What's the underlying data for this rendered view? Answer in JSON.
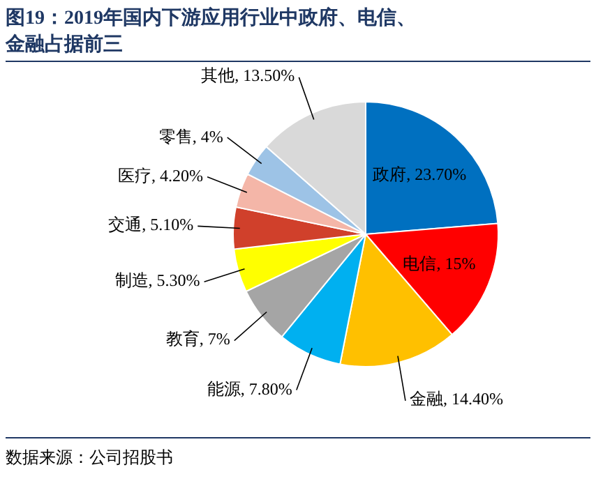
{
  "chart_data": {
    "type": "pie",
    "title": "图19：2019年国内下游应用行业中政府、电信、金融占据前三",
    "categories": [
      "政府",
      "电信",
      "金融",
      "能源",
      "教育",
      "制造",
      "交通",
      "医疗",
      "零售",
      "其他"
    ],
    "values": [
      23.7,
      15,
      14.4,
      7.8,
      7,
      5.3,
      5.1,
      4.2,
      4,
      13.5
    ],
    "value_labels": [
      "23.70%",
      "15%",
      "14.40%",
      "7.80%",
      "7%",
      "5.30%",
      "5.10%",
      "4.20%",
      "4%",
      "13.50%"
    ],
    "colors": [
      "#0070c0",
      "#ff0000",
      "#ffc000",
      "#00b0f0",
      "#a5a5a5",
      "#ffff00",
      "#d0402b",
      "#f4b6a8",
      "#9dc3e6",
      "#d9d9d9"
    ],
    "annotations": [
      "数据来源：公司招股书"
    ]
  }
}
